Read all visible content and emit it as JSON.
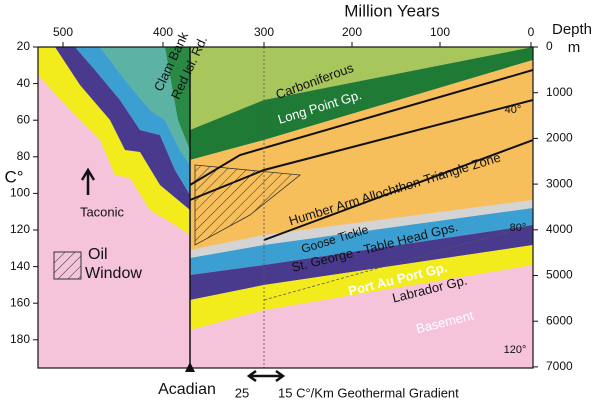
{
  "title": "Million Years",
  "time_axis": {
    "ticks": [
      500,
      400,
      300,
      200,
      100,
      0
    ]
  },
  "temperature_axis": {
    "label": "C°",
    "ticks": [
      20,
      40,
      60,
      80,
      100,
      120,
      140,
      160,
      180
    ]
  },
  "depth_axis": {
    "label": "Depth",
    "unit": "m",
    "ticks": [
      0,
      1000,
      2000,
      3000,
      4000,
      5000,
      6000,
      7000
    ]
  },
  "units": {
    "clam_bank": "Clam Bank",
    "red_isl": "Red Isl. Rd.",
    "carboniferous": "Carboniferous",
    "long_point": "Long Point Gp.",
    "humber_arm": "Humber Arm Allochthon-Triangle Zone",
    "goose_tickle": "Goose Tickle",
    "st_george": "St. George - Table Head Gps.",
    "port_au_port": "Port Au Port Gp.",
    "labrador": "Labrador Gp.",
    "basement": "Basement"
  },
  "isotherms": [
    "40°",
    "80°",
    "120°"
  ],
  "legend": {
    "line1": "Oil",
    "line2": "Window"
  },
  "events": {
    "taconic": "Taconic",
    "acadian": "Acadian"
  },
  "gradient": {
    "start": "25",
    "text": "15 C°/Km Geothermal Gradient"
  }
}
